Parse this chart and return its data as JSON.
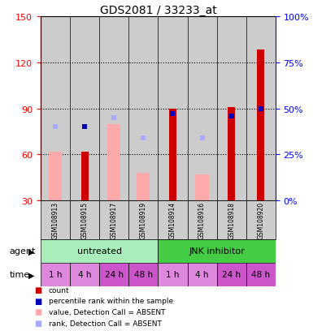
{
  "title": "GDS2081 / 33233_at",
  "samples": [
    "GSM108913",
    "GSM108915",
    "GSM108917",
    "GSM108919",
    "GSM108914",
    "GSM108916",
    "GSM108918",
    "GSM108920"
  ],
  "count_values": [
    null,
    62,
    null,
    null,
    90,
    null,
    91,
    128
  ],
  "value_absent": [
    62,
    null,
    80,
    48,
    null,
    47,
    null,
    null
  ],
  "rank_absent_pct": [
    40,
    null,
    45,
    34,
    null,
    34,
    null,
    null
  ],
  "rank_present_pct": [
    null,
    40,
    null,
    null,
    47,
    null,
    46,
    50
  ],
  "rank_present_dark": [
    false,
    true,
    false,
    false,
    true,
    false,
    true,
    true
  ],
  "agent_labels": [
    "untreated",
    "JNK inhibitor"
  ],
  "time_labels": [
    "1 h",
    "4 h",
    "24 h",
    "48 h",
    "1 h",
    "4 h",
    "24 h",
    "48 h"
  ],
  "ylim_left": [
    30,
    150
  ],
  "ylim_right": [
    0,
    100
  ],
  "yticks_left": [
    30,
    60,
    90,
    120,
    150
  ],
  "yticks_right": [
    0,
    25,
    50,
    75,
    100
  ],
  "color_count": "#cc0000",
  "color_rank_present_dark": "#0000bb",
  "color_rank_present_light": "#aaaaff",
  "color_value_absent": "#ffaaaa",
  "color_rank_absent": "#aaaaff",
  "color_agent_untreated": "#aaeebb",
  "color_agent_jnk": "#44cc44",
  "color_time_light": "#dd88dd",
  "color_time_dark": "#cc55cc",
  "color_sample_bg": "#cccccc",
  "figsize": [
    3.85,
    4.14
  ],
  "dpi": 100
}
